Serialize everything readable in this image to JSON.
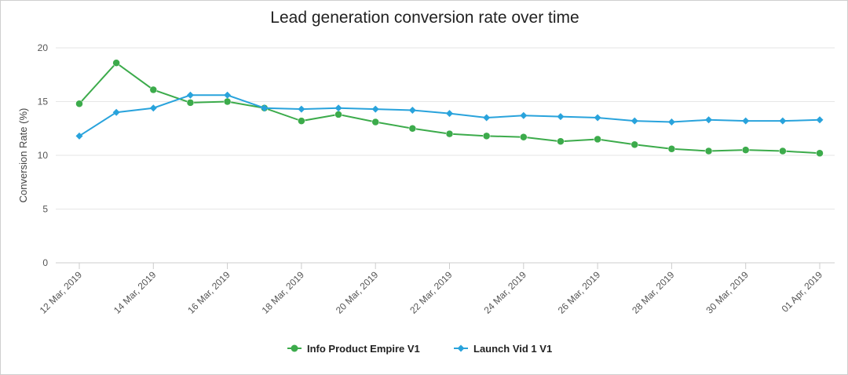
{
  "chart_data": {
    "type": "line",
    "title": "Lead generation conversion rate over time",
    "xlabel": "",
    "ylabel": "Conversion Rate (%)",
    "ylim": [
      0,
      20
    ],
    "yticks": [
      0,
      5,
      10,
      15,
      20
    ],
    "grid": true,
    "legend_position": "bottom-center",
    "x": [
      "12 Mar, 2019",
      "13 Mar, 2019",
      "14 Mar, 2019",
      "15 Mar, 2019",
      "16 Mar, 2019",
      "17 Mar, 2019",
      "18 Mar, 2019",
      "19 Mar, 2019",
      "20 Mar, 2019",
      "21 Mar, 2019",
      "22 Mar, 2019",
      "23 Mar, 2019",
      "24 Mar, 2019",
      "25 Mar, 2019",
      "26 Mar, 2019",
      "27 Mar, 2019",
      "28 Mar, 2019",
      "29 Mar, 2019",
      "30 Mar, 2019",
      "31 Mar, 2019",
      "01 Apr, 2019"
    ],
    "x_tick_labels": [
      "12 Mar, 2019",
      "14 Mar, 2019",
      "16 Mar, 2019",
      "18 Mar, 2019",
      "20 Mar, 2019",
      "22 Mar, 2019",
      "24 Mar, 2019",
      "26 Mar, 2019",
      "28 Mar, 2019",
      "30 Mar, 2019",
      "01 Apr, 2019"
    ],
    "series": [
      {
        "name": "Info Product Empire V1",
        "color": "#3cab4b",
        "marker": "circle",
        "values": [
          14.8,
          18.6,
          16.1,
          14.9,
          15.0,
          14.4,
          13.2,
          13.8,
          13.1,
          12.5,
          12.0,
          11.8,
          11.7,
          11.3,
          11.5,
          11.0,
          10.6,
          10.4,
          10.5,
          10.4,
          10.2
        ]
      },
      {
        "name": "Launch Vid 1 V1",
        "color": "#29a3dc",
        "marker": "diamond",
        "values": [
          11.8,
          14.0,
          14.4,
          15.6,
          15.6,
          14.4,
          14.3,
          14.4,
          14.3,
          14.2,
          13.9,
          13.5,
          13.7,
          13.6,
          13.5,
          13.2,
          13.1,
          13.3,
          13.2,
          13.2,
          13.3
        ]
      }
    ]
  }
}
